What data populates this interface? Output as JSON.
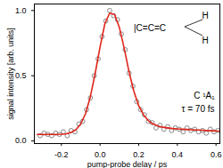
{
  "chart_data": {
    "type": "line",
    "x_label": "pump-probe delay / ps",
    "y_label": "signal intensity [arb. units]",
    "xlim": [
      -0.34,
      0.62
    ],
    "ylim": [
      -0.02,
      1.05
    ],
    "xticks": [
      -0.2,
      {
        "value": 0,
        "label": "0.0"
      },
      0.2,
      0.4,
      0.6
    ],
    "yticks": [
      {
        "value": 0,
        "label": "0.0"
      },
      0.5,
      {
        "value": 1,
        "label": "1.0"
      }
    ],
    "grid": false,
    "annotations": [
      "C ¹A₁",
      "τ = 70 fs"
    ],
    "molecule": {
      "chain": "|C=C=C",
      "substituents": [
        "H",
        "H"
      ]
    },
    "series": [
      {
        "type": "scatter",
        "color": "#7a7a7a",
        "marker": "open_circle",
        "x": [
          -0.31,
          -0.29,
          -0.27,
          -0.25,
          -0.23,
          -0.21,
          -0.19,
          -0.17,
          -0.15,
          -0.13,
          -0.11,
          -0.09,
          -0.07,
          -0.05,
          -0.03,
          -0.01,
          0.01,
          0.03,
          0.05,
          0.07,
          0.09,
          0.11,
          0.13,
          0.15,
          0.17,
          0.19,
          0.21,
          0.23,
          0.25,
          0.27,
          0.29,
          0.31,
          0.33,
          0.35,
          0.37,
          0.39,
          0.41,
          0.43,
          0.45,
          0.47,
          0.49,
          0.51,
          0.53,
          0.55,
          0.57,
          0.59,
          0.61
        ],
        "values": [
          0.04,
          0.06,
          0.05,
          0.04,
          0.06,
          0.05,
          0.07,
          0.04,
          0.08,
          0.07,
          0.13,
          0.15,
          0.24,
          0.33,
          0.5,
          0.63,
          0.8,
          0.92,
          1.0,
          0.96,
          0.93,
          0.82,
          0.7,
          0.52,
          0.42,
          0.3,
          0.24,
          0.2,
          0.15,
          0.14,
          0.1,
          0.12,
          0.09,
          0.11,
          0.08,
          0.1,
          0.09,
          0.07,
          0.1,
          0.08,
          0.09,
          0.07,
          0.08,
          0.06,
          0.09,
          0.07,
          0.08
        ]
      },
      {
        "type": "line",
        "color": "#e0251b",
        "line_style": "solid",
        "x": [
          -0.325,
          -0.3,
          -0.275,
          -0.25,
          -0.225,
          -0.2,
          -0.175,
          -0.15,
          -0.125,
          -0.1,
          -0.075,
          -0.05,
          -0.025,
          0,
          0.025,
          0.05,
          0.075,
          0.1,
          0.125,
          0.15,
          0.175,
          0.2,
          0.225,
          0.25,
          0.275,
          0.3,
          0.325,
          0.35,
          0.375,
          0.4,
          0.425,
          0.45,
          0.475,
          0.5,
          0.525,
          0.55,
          0.575,
          0.6,
          0.625
        ],
        "values": [
          0.05,
          0.05,
          0.05,
          0.05,
          0.05,
          0.052,
          0.055,
          0.065,
          0.085,
          0.13,
          0.21,
          0.34,
          0.52,
          0.72,
          0.9,
          0.98,
          0.97,
          0.87,
          0.71,
          0.53,
          0.38,
          0.27,
          0.2,
          0.155,
          0.13,
          0.115,
          0.105,
          0.1,
          0.095,
          0.092,
          0.09,
          0.088,
          0.086,
          0.084,
          0.082,
          0.08,
          0.078,
          0.076,
          0.075
        ]
      }
    ]
  }
}
